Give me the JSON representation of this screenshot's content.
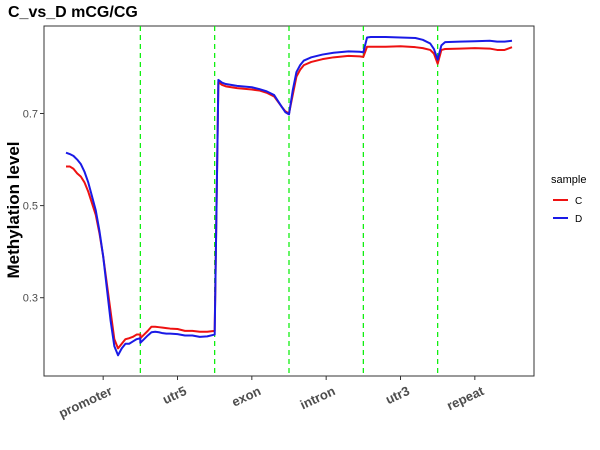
{
  "chart_data": {
    "type": "line",
    "title": "C_vs_D mCG/CG",
    "xlabel": "",
    "ylabel": "Methylation level",
    "ylim": [
      0.13,
      0.89
    ],
    "yticks": [
      0.3,
      0.5,
      0.7
    ],
    "ytick_labels": [
      "0.3",
      "0.5",
      "0.7"
    ],
    "regions": [
      "promoter",
      "utr5",
      "exon",
      "intron",
      "utr3",
      "repeat"
    ],
    "boundary_lines": {
      "color": "#00ee00",
      "style": "dashed"
    },
    "grid": false,
    "legend": {
      "title": "sample",
      "position": "right"
    },
    "series": [
      {
        "name": "C",
        "color": "#ee1111",
        "points": [
          [
            0.0,
            0.585
          ],
          [
            0.05,
            0.585
          ],
          [
            0.1,
            0.58
          ],
          [
            0.15,
            0.57
          ],
          [
            0.2,
            0.563
          ],
          [
            0.25,
            0.55
          ],
          [
            0.3,
            0.53
          ],
          [
            0.35,
            0.505
          ],
          [
            0.4,
            0.48
          ],
          [
            0.45,
            0.44
          ],
          [
            0.5,
            0.39
          ],
          [
            0.55,
            0.33
          ],
          [
            0.6,
            0.27
          ],
          [
            0.65,
            0.21
          ],
          [
            0.7,
            0.19
          ],
          [
            0.75,
            0.2
          ],
          [
            0.8,
            0.21
          ],
          [
            0.85,
            0.212
          ],
          [
            0.9,
            0.215
          ],
          [
            0.95,
            0.22
          ],
          [
            1.0,
            0.22
          ],
          [
            1.0,
            0.212
          ],
          [
            1.05,
            0.22
          ],
          [
            1.1,
            0.228
          ],
          [
            1.15,
            0.237
          ],
          [
            1.2,
            0.237
          ],
          [
            1.25,
            0.236
          ],
          [
            1.3,
            0.235
          ],
          [
            1.35,
            0.234
          ],
          [
            1.4,
            0.233
          ],
          [
            1.5,
            0.232
          ],
          [
            1.6,
            0.228
          ],
          [
            1.7,
            0.228
          ],
          [
            1.8,
            0.226
          ],
          [
            1.9,
            0.226
          ],
          [
            2.0,
            0.228
          ],
          [
            2.0,
            0.228
          ],
          [
            2.05,
            0.768
          ],
          [
            2.1,
            0.762
          ],
          [
            2.15,
            0.759
          ],
          [
            2.3,
            0.755
          ],
          [
            2.5,
            0.752
          ],
          [
            2.6,
            0.75
          ],
          [
            2.7,
            0.745
          ],
          [
            2.8,
            0.737
          ],
          [
            2.9,
            0.715
          ],
          [
            2.95,
            0.705
          ],
          [
            3.0,
            0.7
          ],
          [
            3.0,
            0.7
          ],
          [
            3.05,
            0.74
          ],
          [
            3.1,
            0.78
          ],
          [
            3.15,
            0.795
          ],
          [
            3.2,
            0.805
          ],
          [
            3.3,
            0.812
          ],
          [
            3.45,
            0.818
          ],
          [
            3.6,
            0.822
          ],
          [
            3.8,
            0.825
          ],
          [
            3.95,
            0.824
          ],
          [
            4.0,
            0.823
          ],
          [
            4.0,
            0.823
          ],
          [
            4.05,
            0.845
          ],
          [
            4.1,
            0.845
          ],
          [
            4.3,
            0.845
          ],
          [
            4.5,
            0.846
          ],
          [
            4.7,
            0.844
          ],
          [
            4.8,
            0.842
          ],
          [
            4.9,
            0.838
          ],
          [
            4.95,
            0.83
          ],
          [
            5.0,
            0.808
          ],
          [
            5.0,
            0.808
          ],
          [
            5.05,
            0.838
          ],
          [
            5.1,
            0.84
          ],
          [
            5.3,
            0.841
          ],
          [
            5.5,
            0.842
          ],
          [
            5.7,
            0.841
          ],
          [
            5.8,
            0.838
          ],
          [
            5.9,
            0.838
          ],
          [
            6.0,
            0.844
          ]
        ]
      },
      {
        "name": "D",
        "color": "#1a1ae6",
        "points": [
          [
            0.0,
            0.615
          ],
          [
            0.05,
            0.612
          ],
          [
            0.1,
            0.608
          ],
          [
            0.15,
            0.6
          ],
          [
            0.2,
            0.59
          ],
          [
            0.25,
            0.573
          ],
          [
            0.3,
            0.55
          ],
          [
            0.35,
            0.52
          ],
          [
            0.4,
            0.49
          ],
          [
            0.45,
            0.445
          ],
          [
            0.5,
            0.39
          ],
          [
            0.55,
            0.32
          ],
          [
            0.6,
            0.25
          ],
          [
            0.65,
            0.195
          ],
          [
            0.7,
            0.175
          ],
          [
            0.75,
            0.19
          ],
          [
            0.8,
            0.2
          ],
          [
            0.85,
            0.2
          ],
          [
            0.9,
            0.205
          ],
          [
            0.95,
            0.21
          ],
          [
            1.0,
            0.212
          ],
          [
            1.0,
            0.202
          ],
          [
            1.05,
            0.21
          ],
          [
            1.1,
            0.218
          ],
          [
            1.15,
            0.225
          ],
          [
            1.2,
            0.226
          ],
          [
            1.25,
            0.225
          ],
          [
            1.3,
            0.223
          ],
          [
            1.35,
            0.222
          ],
          [
            1.4,
            0.222
          ],
          [
            1.5,
            0.221
          ],
          [
            1.6,
            0.218
          ],
          [
            1.7,
            0.218
          ],
          [
            1.8,
            0.215
          ],
          [
            1.9,
            0.216
          ],
          [
            2.0,
            0.22
          ],
          [
            2.0,
            0.22
          ],
          [
            2.05,
            0.773
          ],
          [
            2.1,
            0.767
          ],
          [
            2.15,
            0.764
          ],
          [
            2.3,
            0.76
          ],
          [
            2.5,
            0.757
          ],
          [
            2.6,
            0.753
          ],
          [
            2.7,
            0.748
          ],
          [
            2.8,
            0.74
          ],
          [
            2.9,
            0.715
          ],
          [
            2.95,
            0.703
          ],
          [
            3.0,
            0.698
          ],
          [
            3.0,
            0.698
          ],
          [
            3.05,
            0.75
          ],
          [
            3.1,
            0.79
          ],
          [
            3.15,
            0.805
          ],
          [
            3.2,
            0.815
          ],
          [
            3.3,
            0.822
          ],
          [
            3.45,
            0.828
          ],
          [
            3.6,
            0.832
          ],
          [
            3.8,
            0.835
          ],
          [
            3.95,
            0.834
          ],
          [
            4.0,
            0.833
          ],
          [
            4.0,
            0.833
          ],
          [
            4.05,
            0.865
          ],
          [
            4.1,
            0.866
          ],
          [
            4.3,
            0.866
          ],
          [
            4.5,
            0.865
          ],
          [
            4.7,
            0.864
          ],
          [
            4.8,
            0.86
          ],
          [
            4.9,
            0.852
          ],
          [
            4.95,
            0.84
          ],
          [
            5.0,
            0.817
          ],
          [
            5.0,
            0.817
          ],
          [
            5.05,
            0.848
          ],
          [
            5.1,
            0.855
          ],
          [
            5.3,
            0.856
          ],
          [
            5.5,
            0.857
          ],
          [
            5.7,
            0.858
          ],
          [
            5.8,
            0.856
          ],
          [
            5.9,
            0.856
          ],
          [
            6.0,
            0.858
          ]
        ]
      }
    ]
  }
}
